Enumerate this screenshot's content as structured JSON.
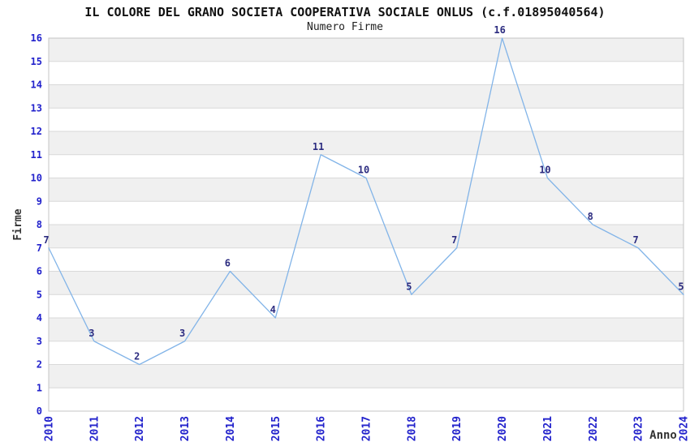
{
  "page": {
    "background": "#ffffff"
  },
  "chart_data": {
    "type": "line",
    "title": "IL COLORE DEL GRANO SOCIETA COOPERATIVA SOCIALE ONLUS (c.f.01895040564)",
    "subtitle": "Numero Firme",
    "xlabel": "Anno",
    "ylabel": "Firme",
    "categories": [
      "2010",
      "2011",
      "2012",
      "2013",
      "2014",
      "2015",
      "2016",
      "2017",
      "2018",
      "2019",
      "2020",
      "2021",
      "2022",
      "2023",
      "2024"
    ],
    "values": [
      7,
      3,
      2,
      3,
      6,
      4,
      11,
      10,
      5,
      7,
      16,
      10,
      8,
      7,
      5
    ],
    "ylim": [
      0,
      16
    ],
    "ytick_step": 1,
    "grid": true,
    "legend": "none",
    "colors": {
      "line": "#82b4e8",
      "band": "#f0f0f0",
      "grid": "#d9d9d9",
      "plot_border": "#c4c4c4",
      "tick_label": "#2222cc",
      "data_label": "#2c2c80",
      "axis_title": "#333333",
      "title": "#111111",
      "subtitle": "#222222"
    }
  }
}
